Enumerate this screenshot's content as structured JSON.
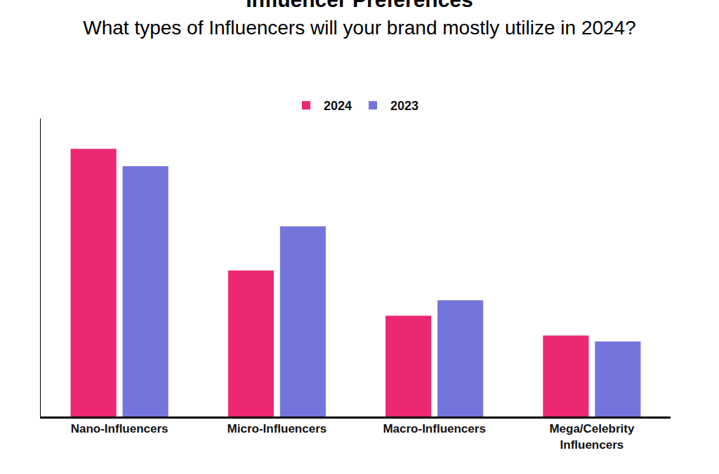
{
  "chart_data": {
    "type": "bar",
    "title": "Influencer Preferences",
    "subtitle": "What types of Influencers will your brand mostly utilize in 2024?",
    "categories": [
      "Nano-Influencers",
      "Micro-Influencers",
      "Macro-Influencers",
      "Mega/Celebrity Influencers"
    ],
    "series": [
      {
        "name": "2024",
        "color": "#ec2872",
        "values": [
          44.9,
          24.5,
          16.9,
          13.6
        ]
      },
      {
        "name": "2023",
        "color": "#7475dc",
        "values": [
          42.0,
          31.9,
          19.5,
          12.6
        ]
      }
    ],
    "ylim": [
      0,
      50
    ],
    "tick_labels": "x",
    "grid": false,
    "legend": "top"
  }
}
